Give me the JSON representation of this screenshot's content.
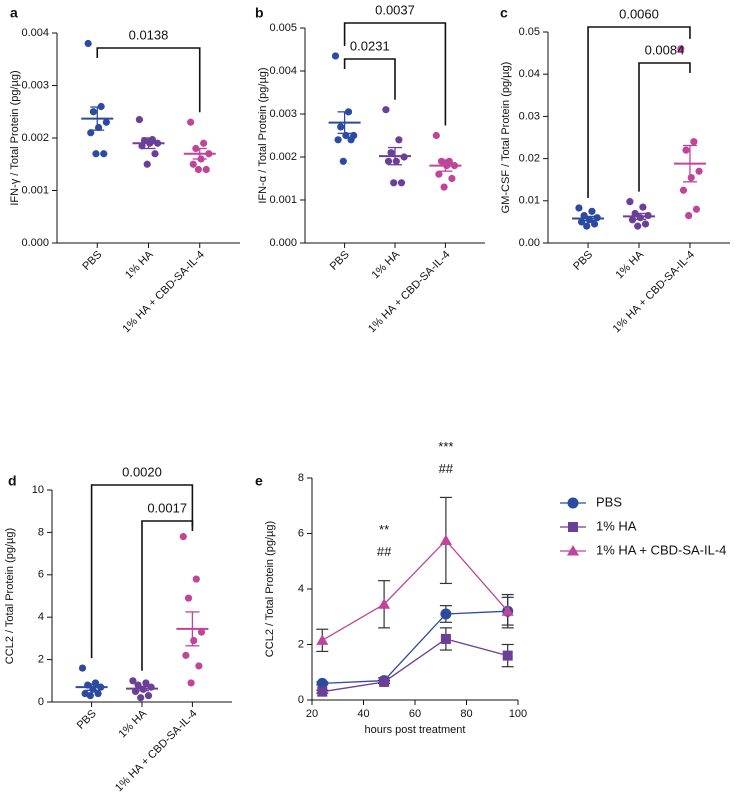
{
  "chart_data": [
    {
      "type": "strip",
      "panel": "a",
      "y_label": "IFN-γ / Total Protein (pg/µg)",
      "categories": [
        "PBS",
        "1% HA",
        "1% HA + CBD-SA-IL-4"
      ],
      "groups": [
        {
          "color": "#2b4ba0",
          "values": [
            0.0038,
            0.0026,
            0.0025,
            0.0023,
            0.0022,
            0.0021,
            0.0017,
            0.0017
          ],
          "mean": 0.00237,
          "sem": 0.00022
        },
        {
          "color": "#6b3f98",
          "values": [
            0.00235,
            0.00197,
            0.00195,
            0.0019,
            0.0019,
            0.00185,
            0.0017,
            0.0015
          ],
          "mean": 0.0019,
          "sem": 0.0001
        },
        {
          "color": "#c0449a",
          "values": [
            0.0023,
            0.0019,
            0.0018,
            0.0017,
            0.0016,
            0.0015,
            0.0014,
            0.0014
          ],
          "mean": 0.0017,
          "sem": 0.0001
        }
      ],
      "comparisons": [
        {
          "between": [
            0,
            2
          ],
          "label": "0.0138"
        }
      ],
      "ylim": [
        0,
        0.004
      ],
      "yticks": [
        {
          "value": 0,
          "label": "0.000"
        },
        0.001,
        0.002,
        0.003,
        0.004
      ]
    },
    {
      "type": "strip",
      "panel": "b",
      "y_label": "IFN-α / Total Protein (pg/µg)",
      "categories": [
        "PBS",
        "1% HA",
        "1% HA + CBD-SA-IL-4"
      ],
      "groups": [
        {
          "color": "#2b4ba0",
          "values": [
            0.00435,
            0.00305,
            0.0027,
            0.0025,
            0.0025,
            0.0024,
            0.0024,
            0.0019
          ],
          "mean": 0.0028,
          "sem": 0.00025
        },
        {
          "color": "#6b3f98",
          "values": [
            0.0031,
            0.0024,
            0.0021,
            0.002,
            0.0019,
            0.0019,
            0.0014,
            0.0014
          ],
          "mean": 0.00202,
          "sem": 0.0002
        },
        {
          "color": "#c0449a",
          "values": [
            0.0025,
            0.0019,
            0.0019,
            0.0018,
            0.0018,
            0.0016,
            0.0015,
            0.0013
          ],
          "mean": 0.0018,
          "sem": 0.00013
        }
      ],
      "comparisons": [
        {
          "between": [
            0,
            1
          ],
          "label": "0.0231"
        },
        {
          "between": [
            0,
            2
          ],
          "label": "0.0037"
        }
      ],
      "ylim": [
        0,
        0.005
      ],
      "yticks": [
        {
          "value": 0,
          "label": "0.000"
        },
        0.001,
        0.002,
        0.003,
        0.004,
        0.005
      ]
    },
    {
      "type": "strip",
      "panel": "c",
      "y_label": "GM-CSF / Total Protein (pg/µg)",
      "categories": [
        "PBS",
        "1% HA",
        "1% HA + CBD-SA-IL-4"
      ],
      "groups": [
        {
          "color": "#2b4ba0",
          "values": [
            0.0083,
            0.0075,
            0.0065,
            0.006,
            0.0055,
            0.005,
            0.0045,
            0.004
          ],
          "mean": 0.0058,
          "sem": 0.0005
        },
        {
          "color": "#6b3f98",
          "values": [
            0.0098,
            0.0085,
            0.007,
            0.0065,
            0.006,
            0.0055,
            0.0045,
            0.004
          ],
          "mean": 0.0063,
          "sem": 0.0007
        },
        {
          "color": "#c0449a",
          "values": [
            0.046,
            0.024,
            0.022,
            0.017,
            0.0155,
            0.0125,
            0.008,
            0.0065
          ],
          "mean": 0.0188,
          "sem": 0.0043
        }
      ],
      "comparisons": [
        {
          "between": [
            1,
            2
          ],
          "label": "0.0084"
        },
        {
          "between": [
            0,
            2
          ],
          "label": "0.0060"
        }
      ],
      "ylim": [
        0,
        0.05
      ],
      "yticks": [
        {
          "value": 0,
          "label": "0.00"
        },
        0.01,
        0.02,
        0.03,
        0.04,
        0.05
      ]
    },
    {
      "type": "strip",
      "panel": "d",
      "y_label": "CCL2 / Total Protein (pg/µg)",
      "categories": [
        "PBS",
        "1% HA",
        "1% HA + CBD-SA-IL-4"
      ],
      "groups": [
        {
          "color": "#2b4ba0",
          "values": [
            1.6,
            0.9,
            0.8,
            0.7,
            0.6,
            0.4,
            0.4,
            0.3
          ],
          "mean": 0.7,
          "sem": 0.15
        },
        {
          "color": "#6b3f98",
          "values": [
            1.0,
            0.9,
            0.8,
            0.7,
            0.6,
            0.5,
            0.3,
            0.2
          ],
          "mean": 0.63,
          "sem": 0.1
        },
        {
          "color": "#c0449a",
          "values": [
            7.8,
            5.8,
            4.9,
            3.3,
            2.9,
            2.2,
            1.7,
            0.9
          ],
          "mean": 3.45,
          "sem": 0.8
        }
      ],
      "comparisons": [
        {
          "between": [
            1,
            2
          ],
          "label": "0.0017"
        },
        {
          "between": [
            0,
            2
          ],
          "label": "0.0020"
        }
      ],
      "ylim": [
        0,
        10
      ],
      "yticks": [
        0,
        2,
        4,
        6,
        8,
        10
      ]
    },
    {
      "type": "line",
      "panel": "e",
      "y_label": "CCL2 / Total Protein (pg/µg)",
      "x_label": "hours post treatment",
      "x": [
        24,
        48,
        72,
        96
      ],
      "series": [
        {
          "name": "PBS",
          "color": "#2b4ba0",
          "marker": "circle",
          "values": [
            0.6,
            0.7,
            3.1,
            3.2
          ],
          "errors": [
            0.05,
            0.1,
            0.3,
            0.6
          ]
        },
        {
          "name": "1% HA",
          "color": "#6b3f98",
          "marker": "square",
          "values": [
            0.3,
            0.65,
            2.2,
            1.6
          ],
          "errors": [
            0.05,
            0.05,
            0.4,
            0.4
          ]
        },
        {
          "name": "1% HA + CBD-SA-IL-4",
          "color": "#c0449a",
          "marker": "triangle",
          "values": [
            2.15,
            3.45,
            5.75,
            3.2
          ],
          "errors": [
            0.4,
            0.85,
            1.55,
            0.5
          ]
        }
      ],
      "annotations": [
        {
          "x": 48,
          "lines": [
            "**",
            "##"
          ]
        },
        {
          "x": 72,
          "lines": [
            "***",
            "##"
          ]
        }
      ],
      "xlim": [
        20,
        100
      ],
      "xticks": [
        20,
        40,
        60,
        80,
        100
      ],
      "ylim": [
        0,
        8
      ],
      "yticks": [
        0,
        2,
        4,
        6,
        8
      ]
    }
  ]
}
